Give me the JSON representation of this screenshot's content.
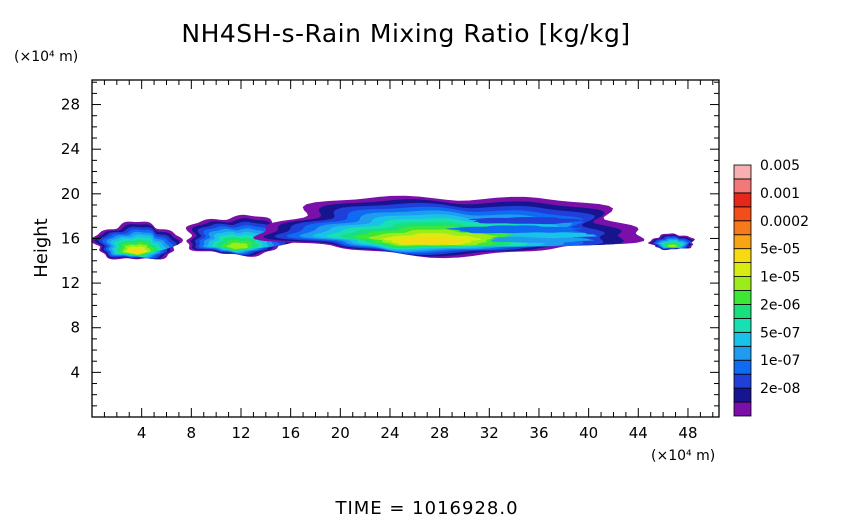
{
  "chart_data": {
    "type": "heatmap",
    "title": "NH4SH-s-Rain Mixing Ratio [kg/kg]",
    "ylabel": "Height",
    "x_unit_label": "(×10⁴ m)",
    "y_unit_label": "(×10⁴ m)",
    "xlim": [
      0,
      50.5
    ],
    "ylim": [
      0,
      30.2
    ],
    "x_ticks": [
      "4",
      "8",
      "12",
      "16",
      "20",
      "24",
      "28",
      "32",
      "36",
      "40",
      "44",
      "48"
    ],
    "y_ticks": [
      "4",
      "8",
      "12",
      "16",
      "20",
      "24",
      "28"
    ],
    "time_label": "TIME  =  1016928.0",
    "colorbar": {
      "levels": [
        {
          "color": "#7B0FAA"
        },
        {
          "color": "#16158F",
          "label": "2e-08"
        },
        {
          "color": "#1F3FD8"
        },
        {
          "color": "#0F6BF2",
          "label": "1e-07"
        },
        {
          "color": "#1F9BF0"
        },
        {
          "color": "#19C2E8",
          "label": "5e-07"
        },
        {
          "color": "#18E0B0"
        },
        {
          "color": "#19E07A",
          "label": "2e-06"
        },
        {
          "color": "#3CE835"
        },
        {
          "color": "#9BEC1A",
          "label": "1e-05"
        },
        {
          "color": "#D9EC12"
        },
        {
          "color": "#F6DA12",
          "label": "5e-05"
        },
        {
          "color": "#F8A514"
        },
        {
          "color": "#F77A1A",
          "label": "0.0002"
        },
        {
          "color": "#F24E1A"
        },
        {
          "color": "#E6281A",
          "label": "0.001"
        },
        {
          "color": "#F2787A"
        },
        {
          "color": "#F8AFAF",
          "label": "0.005"
        }
      ]
    },
    "field_blobs": [
      {
        "name": "left-cloud",
        "x_range": [
          0.2,
          7.0
        ],
        "y_range": [
          13.6,
          17.4
        ],
        "peak_level": 11
      },
      {
        "name": "cloud-mid-left",
        "x_range": [
          7.5,
          16.0
        ],
        "y_range": [
          14.0,
          18.0
        ],
        "peak_level": 9
      },
      {
        "name": "main-cloud",
        "x_range": [
          14.0,
          44.0
        ],
        "y_range": [
          13.8,
          19.8
        ],
        "peak_level": 11
      },
      {
        "name": "right-cloud",
        "x_range": [
          45.0,
          48.5
        ],
        "y_range": [
          14.8,
          16.4
        ],
        "peak_level": 9
      }
    ]
  }
}
